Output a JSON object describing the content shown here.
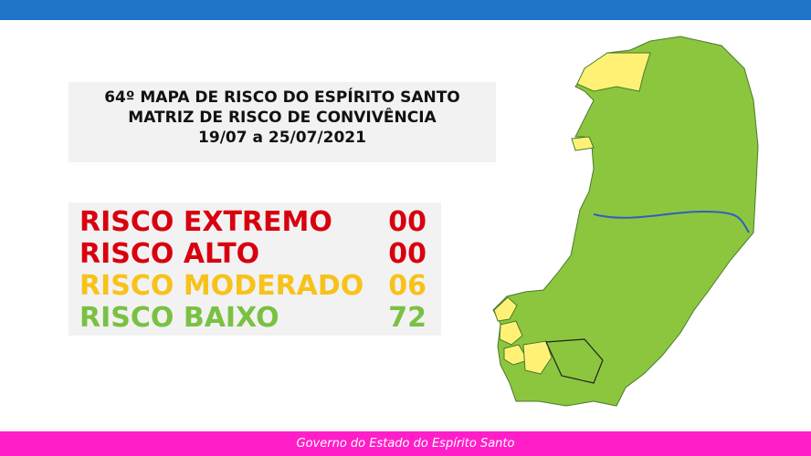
{
  "header": {
    "title_lines": [
      "64º MAPA DE RISCO DO ESPÍRITO SANTO",
      "MATRIZ DE RISCO DE CONVIVÊNCIA",
      "19/07 a 25/07/2021"
    ]
  },
  "risk_table": {
    "rows": [
      {
        "label": "RISCO EXTREMO",
        "count": "00",
        "color": "#d8000f"
      },
      {
        "label": "RISCO ALTO",
        "count": "00",
        "color": "#d8000f"
      },
      {
        "label": "RISCO MODERADO",
        "count": "06",
        "color": "#f7c21a"
      },
      {
        "label": "RISCO BAIXO",
        "count": "72",
        "color": "#7ac143"
      }
    ]
  },
  "footer": {
    "text": "Governo do Estado do Espírito Santo"
  }
}
